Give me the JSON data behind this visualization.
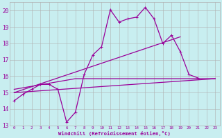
{
  "xlabel": "Windchill (Refroidissement éolien,°C)",
  "bg_color": "#c8eef0",
  "grid_color": "#b0b0b0",
  "line_color": "#990099",
  "xlim": [
    -0.5,
    23.5
  ],
  "ylim": [
    13,
    20.5
  ],
  "yticks": [
    13,
    14,
    15,
    16,
    17,
    18,
    19,
    20
  ],
  "xticks": [
    0,
    1,
    2,
    3,
    4,
    5,
    6,
    7,
    8,
    9,
    10,
    11,
    12,
    13,
    14,
    15,
    16,
    17,
    18,
    19,
    20,
    21,
    22,
    23
  ],
  "series": [
    {
      "x": [
        0,
        1,
        2,
        3,
        4,
        5,
        6,
        7,
        8,
        9,
        10,
        11,
        12,
        13,
        14,
        15,
        16,
        17,
        18,
        19,
        20,
        21,
        22,
        23
      ],
      "y": [
        14.5,
        14.9,
        15.2,
        15.5,
        15.5,
        15.2,
        13.2,
        13.8,
        16.1,
        17.3,
        17.8,
        20.05,
        19.3,
        19.5,
        19.6,
        20.2,
        19.5,
        18.0,
        18.5,
        17.5,
        16.1,
        15.9,
        null,
        null
      ],
      "has_markers": true
    },
    {
      "x": [
        0,
        23
      ],
      "y": [
        15.0,
        15.85
      ],
      "has_markers": false
    },
    {
      "x": [
        0,
        19
      ],
      "y": [
        15.0,
        18.4
      ],
      "has_markers": false
    },
    {
      "x": [
        0,
        7,
        23
      ],
      "y": [
        15.2,
        15.85,
        15.85
      ],
      "has_markers": false
    }
  ]
}
